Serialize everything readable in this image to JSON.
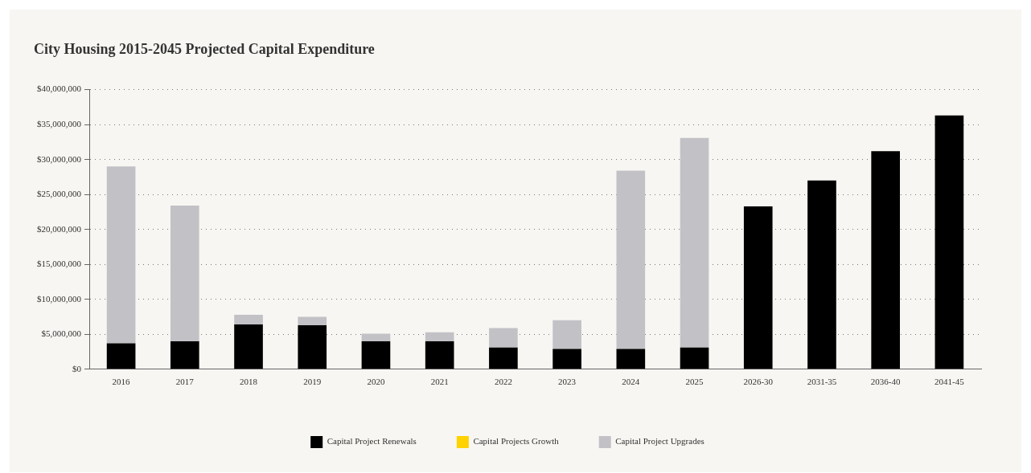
{
  "chart_data": {
    "type": "bar",
    "title": "City Housing 2015-2045 Projected Capital Expenditure",
    "categories": [
      "2016",
      "2017",
      "2018",
      "2019",
      "2020",
      "2021",
      "2022",
      "2023",
      "2024",
      "2025",
      "2026-30",
      "2031-35",
      "2036-40",
      "2041-45"
    ],
    "stacked": true,
    "series": [
      {
        "name": "Capital Project Renewals",
        "color": "#000000",
        "values": [
          3700000,
          4000000,
          6400000,
          6300000,
          4000000,
          4000000,
          3100000,
          2900000,
          2900000,
          3100000,
          23300000,
          27000000,
          31200000,
          36300000
        ]
      },
      {
        "name": "Capital Projects Growth",
        "color": "#ffd200",
        "values": [
          0,
          0,
          0,
          0,
          0,
          0,
          0,
          0,
          0,
          0,
          0,
          0,
          0,
          0
        ]
      },
      {
        "name": "Capital Project Upgrades",
        "color": "#c2c1c6",
        "values": [
          25300000,
          19400000,
          1400000,
          1200000,
          1100000,
          1300000,
          2800000,
          4100000,
          25500000,
          30000000,
          0,
          0,
          0,
          0
        ]
      }
    ],
    "ylim": [
      0,
      40000000
    ],
    "yticks": [
      {
        "value": 0,
        "label": "$0"
      },
      {
        "value": 5000000,
        "label": "$5,000,000"
      },
      {
        "value": 10000000,
        "label": "$10,000,000"
      },
      {
        "value": 15000000,
        "label": "$15,000,000"
      },
      {
        "value": 20000000,
        "label": "$20,000,000"
      },
      {
        "value": 25000000,
        "label": "$25,000,000"
      },
      {
        "value": 30000000,
        "label": "$30,000,000"
      },
      {
        "value": 35000000,
        "label": "$35,000,000"
      },
      {
        "value": 40000000,
        "label": "$40,000,000"
      }
    ],
    "grid": "y",
    "legend": "bottom"
  }
}
